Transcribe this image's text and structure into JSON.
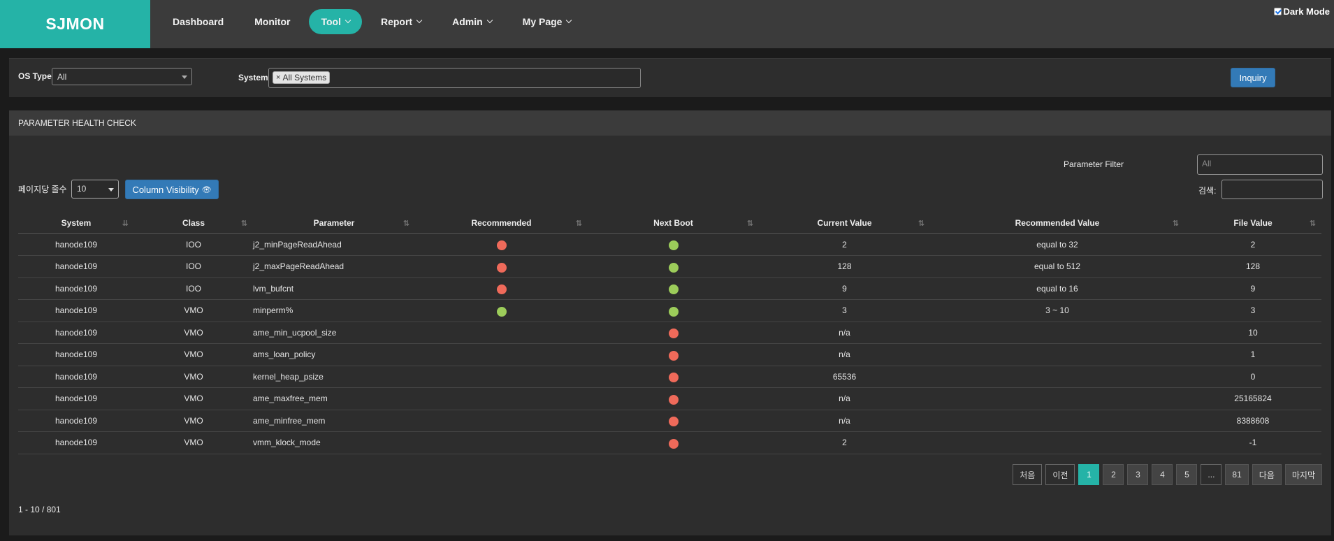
{
  "app": {
    "brand": "SJMON",
    "nav": [
      {
        "label": "Dashboard",
        "dropdown": false,
        "active": false
      },
      {
        "label": "Monitor",
        "dropdown": false,
        "active": false
      },
      {
        "label": "Tool",
        "dropdown": true,
        "active": true
      },
      {
        "label": "Report",
        "dropdown": true,
        "active": false
      },
      {
        "label": "Admin",
        "dropdown": true,
        "active": false
      },
      {
        "label": "My Page",
        "dropdown": true,
        "active": false
      }
    ],
    "dark_mode_label": "Dark Mode",
    "dark_mode_checked": true
  },
  "filters": {
    "os_type_label": "OS Type",
    "os_type_value": "All",
    "system_label": "System",
    "system_tag": "All Systems",
    "inquiry_label": "Inquiry"
  },
  "panel": {
    "title": "PARAMETER HEALTH CHECK",
    "parameter_filter_label": "Parameter Filter",
    "parameter_filter_placeholder": "All",
    "rows_per_page_label": "페이지당 줄수",
    "rows_per_page_value": "10",
    "column_visibility_label": "Column Visibility",
    "search_label": "검색:"
  },
  "table": {
    "columns": [
      "System",
      "Class",
      "Parameter",
      "Recommended",
      "Next Boot",
      "Current Value",
      "Recommended Value",
      "File Value"
    ],
    "rows": [
      {
        "system": "hanode109",
        "class": "IOO",
        "parameter": "j2_minPageReadAhead",
        "recommended": "red",
        "next_boot": "green",
        "current": "2",
        "rec_value": "equal to 32",
        "file": "2"
      },
      {
        "system": "hanode109",
        "class": "IOO",
        "parameter": "j2_maxPageReadAhead",
        "recommended": "red",
        "next_boot": "green",
        "current": "128",
        "rec_value": "equal to 512",
        "file": "128"
      },
      {
        "system": "hanode109",
        "class": "IOO",
        "parameter": "lvm_bufcnt",
        "recommended": "red",
        "next_boot": "green",
        "current": "9",
        "rec_value": "equal to 16",
        "file": "9"
      },
      {
        "system": "hanode109",
        "class": "VMO",
        "parameter": "minperm%",
        "recommended": "green",
        "next_boot": "green",
        "current": "3",
        "rec_value": "3 ~ 10",
        "file": "3"
      },
      {
        "system": "hanode109",
        "class": "VMO",
        "parameter": "ame_min_ucpool_size",
        "recommended": "",
        "next_boot": "red",
        "current": "n/a",
        "rec_value": "",
        "file": "10"
      },
      {
        "system": "hanode109",
        "class": "VMO",
        "parameter": "ams_loan_policy",
        "recommended": "",
        "next_boot": "red",
        "current": "n/a",
        "rec_value": "",
        "file": "1"
      },
      {
        "system": "hanode109",
        "class": "VMO",
        "parameter": "kernel_heap_psize",
        "recommended": "",
        "next_boot": "red",
        "current": "65536",
        "rec_value": "",
        "file": "0"
      },
      {
        "system": "hanode109",
        "class": "VMO",
        "parameter": "ame_maxfree_mem",
        "recommended": "",
        "next_boot": "red",
        "current": "n/a",
        "rec_value": "",
        "file": "25165824"
      },
      {
        "system": "hanode109",
        "class": "VMO",
        "parameter": "ame_minfree_mem",
        "recommended": "",
        "next_boot": "red",
        "current": "n/a",
        "rec_value": "",
        "file": "8388608"
      },
      {
        "system": "hanode109",
        "class": "VMO",
        "parameter": "vmm_klock_mode",
        "recommended": "",
        "next_boot": "red",
        "current": "2",
        "rec_value": "",
        "file": "-1"
      }
    ]
  },
  "pagination": {
    "buttons": [
      {
        "label": "처음",
        "style": "outline"
      },
      {
        "label": "이전",
        "style": "outline"
      },
      {
        "label": "1",
        "style": "active"
      },
      {
        "label": "2",
        "style": "normal"
      },
      {
        "label": "3",
        "style": "normal"
      },
      {
        "label": "4",
        "style": "normal"
      },
      {
        "label": "5",
        "style": "normal"
      },
      {
        "label": "...",
        "style": "outline"
      },
      {
        "label": "81",
        "style": "normal"
      },
      {
        "label": "다음",
        "style": "normal"
      },
      {
        "label": "마지막",
        "style": "normal"
      }
    ],
    "info": "1 - 10 / 801"
  },
  "colors": {
    "accent": "#25b3a7",
    "status_red": "#ef6a5a",
    "status_green": "#9ccc5a",
    "button_blue": "#337ab7"
  }
}
